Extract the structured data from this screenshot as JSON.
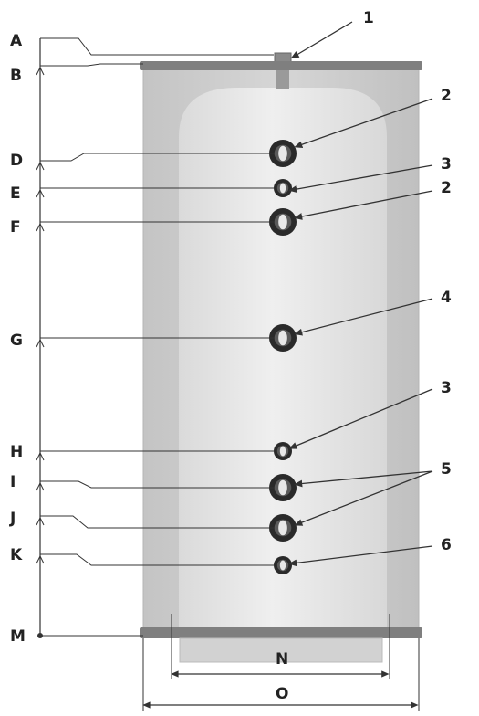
{
  "left_labels": [
    "A",
    "B",
    "D",
    "E",
    "F",
    "G",
    "H",
    "I",
    "J",
    "K",
    "M"
  ],
  "right_labels": [
    "1",
    "2",
    "3",
    "2",
    "4",
    "3",
    "5",
    "6"
  ],
  "bottom_labels": [
    "N",
    "O"
  ],
  "colors": {
    "casing": "#cdcdcd",
    "casing_edge": "#b9b9b9",
    "inner_tank": "#e6e6e6",
    "band": "#7f7f7f",
    "fitting": "#2a2a2a",
    "line": "#333333"
  }
}
